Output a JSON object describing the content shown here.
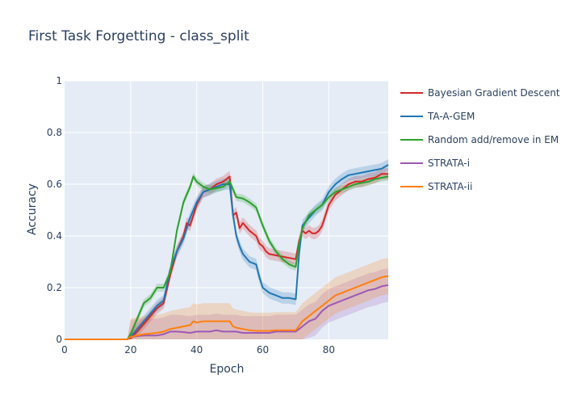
{
  "chart_data": {
    "type": "line",
    "title": "First Task Forgetting - class_split",
    "xlabel": "Epoch",
    "ylabel": "Accuracy",
    "xlim": [
      0,
      98
    ],
    "ylim": [
      0,
      1
    ],
    "xticks": [
      0,
      20,
      40,
      60,
      80
    ],
    "yticks": [
      0,
      0.2,
      0.4,
      0.6,
      0.8,
      1
    ],
    "ytick_labels": [
      "0",
      "0.2",
      "0.4",
      "0.6",
      "0.8",
      "1"
    ],
    "grid": true,
    "legend_position": "right",
    "series": [
      {
        "name": "Bayesian Gradient Descent",
        "color": "#d62728",
        "band": 0.022,
        "points": [
          [
            0,
            0
          ],
          [
            19,
            0
          ],
          [
            20,
            0.005
          ],
          [
            22,
            0.03
          ],
          [
            24,
            0.06
          ],
          [
            26,
            0.09
          ],
          [
            28,
            0.12
          ],
          [
            30,
            0.14
          ],
          [
            32,
            0.25
          ],
          [
            34,
            0.34
          ],
          [
            36,
            0.4
          ],
          [
            37,
            0.45
          ],
          [
            38,
            0.44
          ],
          [
            40,
            0.52
          ],
          [
            42,
            0.57
          ],
          [
            44,
            0.58
          ],
          [
            46,
            0.6
          ],
          [
            48,
            0.61
          ],
          [
            50,
            0.63
          ],
          [
            51,
            0.48
          ],
          [
            52,
            0.49
          ],
          [
            53,
            0.43
          ],
          [
            54,
            0.45
          ],
          [
            56,
            0.42
          ],
          [
            58,
            0.4
          ],
          [
            59,
            0.37
          ],
          [
            60,
            0.36
          ],
          [
            61,
            0.34
          ],
          [
            62,
            0.33
          ],
          [
            64,
            0.325
          ],
          [
            66,
            0.32
          ],
          [
            68,
            0.315
          ],
          [
            70,
            0.31
          ],
          [
            71,
            0.38
          ],
          [
            72,
            0.42
          ],
          [
            73,
            0.41
          ],
          [
            74,
            0.42
          ],
          [
            75,
            0.41
          ],
          [
            76,
            0.41
          ],
          [
            77,
            0.42
          ],
          [
            78,
            0.44
          ],
          [
            80,
            0.52
          ],
          [
            82,
            0.56
          ],
          [
            84,
            0.58
          ],
          [
            86,
            0.6
          ],
          [
            88,
            0.61
          ],
          [
            90,
            0.61
          ],
          [
            92,
            0.62
          ],
          [
            94,
            0.625
          ],
          [
            96,
            0.64
          ],
          [
            98,
            0.64
          ]
        ]
      },
      {
        "name": "TA-A-GEM",
        "color": "#1f77b4",
        "band": 0.022,
        "points": [
          [
            0,
            0
          ],
          [
            19,
            0
          ],
          [
            20,
            0.01
          ],
          [
            22,
            0.04
          ],
          [
            24,
            0.07
          ],
          [
            26,
            0.1
          ],
          [
            28,
            0.13
          ],
          [
            30,
            0.15
          ],
          [
            32,
            0.27
          ],
          [
            34,
            0.34
          ],
          [
            36,
            0.39
          ],
          [
            38,
            0.47
          ],
          [
            40,
            0.53
          ],
          [
            42,
            0.57
          ],
          [
            44,
            0.58
          ],
          [
            46,
            0.59
          ],
          [
            48,
            0.6
          ],
          [
            50,
            0.6
          ],
          [
            51,
            0.48
          ],
          [
            52,
            0.4
          ],
          [
            53,
            0.36
          ],
          [
            54,
            0.33
          ],
          [
            56,
            0.3
          ],
          [
            58,
            0.29
          ],
          [
            59,
            0.24
          ],
          [
            60,
            0.2
          ],
          [
            62,
            0.18
          ],
          [
            64,
            0.17
          ],
          [
            66,
            0.16
          ],
          [
            68,
            0.16
          ],
          [
            70,
            0.155
          ],
          [
            71,
            0.33
          ],
          [
            72,
            0.44
          ],
          [
            74,
            0.47
          ],
          [
            76,
            0.5
          ],
          [
            78,
            0.52
          ],
          [
            80,
            0.57
          ],
          [
            82,
            0.6
          ],
          [
            84,
            0.62
          ],
          [
            86,
            0.635
          ],
          [
            88,
            0.64
          ],
          [
            90,
            0.645
          ],
          [
            92,
            0.65
          ],
          [
            94,
            0.655
          ],
          [
            96,
            0.66
          ],
          [
            98,
            0.675
          ]
        ]
      },
      {
        "name": "Random add/remove in EM",
        "color": "#2ca02c",
        "band": 0.015,
        "points": [
          [
            0,
            0
          ],
          [
            19,
            0
          ],
          [
            20,
            0.02
          ],
          [
            22,
            0.08
          ],
          [
            24,
            0.14
          ],
          [
            26,
            0.16
          ],
          [
            28,
            0.2
          ],
          [
            30,
            0.2
          ],
          [
            32,
            0.26
          ],
          [
            34,
            0.42
          ],
          [
            36,
            0.53
          ],
          [
            38,
            0.59
          ],
          [
            39,
            0.63
          ],
          [
            40,
            0.61
          ],
          [
            42,
            0.59
          ],
          [
            44,
            0.58
          ],
          [
            46,
            0.585
          ],
          [
            48,
            0.59
          ],
          [
            50,
            0.61
          ],
          [
            51,
            0.58
          ],
          [
            52,
            0.55
          ],
          [
            54,
            0.545
          ],
          [
            56,
            0.53
          ],
          [
            58,
            0.51
          ],
          [
            60,
            0.44
          ],
          [
            62,
            0.38
          ],
          [
            64,
            0.34
          ],
          [
            66,
            0.31
          ],
          [
            68,
            0.29
          ],
          [
            70,
            0.28
          ],
          [
            71,
            0.37
          ],
          [
            72,
            0.43
          ],
          [
            74,
            0.48
          ],
          [
            76,
            0.5
          ],
          [
            78,
            0.52
          ],
          [
            80,
            0.55
          ],
          [
            82,
            0.57
          ],
          [
            84,
            0.58
          ],
          [
            86,
            0.59
          ],
          [
            88,
            0.6
          ],
          [
            90,
            0.605
          ],
          [
            92,
            0.61
          ],
          [
            94,
            0.62
          ],
          [
            96,
            0.625
          ],
          [
            98,
            0.63
          ]
        ]
      },
      {
        "name": "STRATA-i",
        "color": "#9b59b6",
        "band": 0.065,
        "points": [
          [
            0,
            0
          ],
          [
            19,
            0
          ],
          [
            20,
            0.01
          ],
          [
            24,
            0.015
          ],
          [
            28,
            0.015
          ],
          [
            30,
            0.02
          ],
          [
            32,
            0.03
          ],
          [
            34,
            0.03
          ],
          [
            36,
            0.028
          ],
          [
            38,
            0.025
          ],
          [
            40,
            0.03
          ],
          [
            42,
            0.03
          ],
          [
            44,
            0.03
          ],
          [
            46,
            0.035
          ],
          [
            48,
            0.03
          ],
          [
            50,
            0.03
          ],
          [
            52,
            0.03
          ],
          [
            54,
            0.025
          ],
          [
            56,
            0.025
          ],
          [
            58,
            0.025
          ],
          [
            60,
            0.025
          ],
          [
            62,
            0.025
          ],
          [
            64,
            0.03
          ],
          [
            66,
            0.03
          ],
          [
            68,
            0.03
          ],
          [
            70,
            0.03
          ],
          [
            72,
            0.05
          ],
          [
            74,
            0.07
          ],
          [
            76,
            0.08
          ],
          [
            78,
            0.11
          ],
          [
            80,
            0.13
          ],
          [
            82,
            0.14
          ],
          [
            84,
            0.15
          ],
          [
            86,
            0.16
          ],
          [
            88,
            0.17
          ],
          [
            90,
            0.18
          ],
          [
            92,
            0.19
          ],
          [
            94,
            0.195
          ],
          [
            96,
            0.205
          ],
          [
            98,
            0.21
          ]
        ]
      },
      {
        "name": "STRATA-ii",
        "color": "#ff7f0e",
        "band": 0.07,
        "points": [
          [
            0,
            0
          ],
          [
            19,
            0
          ],
          [
            20,
            0.01
          ],
          [
            24,
            0.02
          ],
          [
            28,
            0.025
          ],
          [
            30,
            0.03
          ],
          [
            32,
            0.04
          ],
          [
            34,
            0.045
          ],
          [
            36,
            0.05
          ],
          [
            38,
            0.055
          ],
          [
            39,
            0.07
          ],
          [
            40,
            0.065
          ],
          [
            42,
            0.07
          ],
          [
            44,
            0.07
          ],
          [
            46,
            0.07
          ],
          [
            48,
            0.07
          ],
          [
            50,
            0.07
          ],
          [
            51,
            0.05
          ],
          [
            52,
            0.045
          ],
          [
            54,
            0.04
          ],
          [
            56,
            0.035
          ],
          [
            58,
            0.033
          ],
          [
            60,
            0.033
          ],
          [
            62,
            0.033
          ],
          [
            64,
            0.035
          ],
          [
            66,
            0.035
          ],
          [
            68,
            0.035
          ],
          [
            70,
            0.035
          ],
          [
            72,
            0.07
          ],
          [
            74,
            0.09
          ],
          [
            76,
            0.11
          ],
          [
            78,
            0.13
          ],
          [
            80,
            0.15
          ],
          [
            82,
            0.17
          ],
          [
            84,
            0.18
          ],
          [
            86,
            0.19
          ],
          [
            88,
            0.2
          ],
          [
            90,
            0.21
          ],
          [
            92,
            0.22
          ],
          [
            94,
            0.23
          ],
          [
            96,
            0.24
          ],
          [
            98,
            0.245
          ]
        ]
      }
    ]
  }
}
